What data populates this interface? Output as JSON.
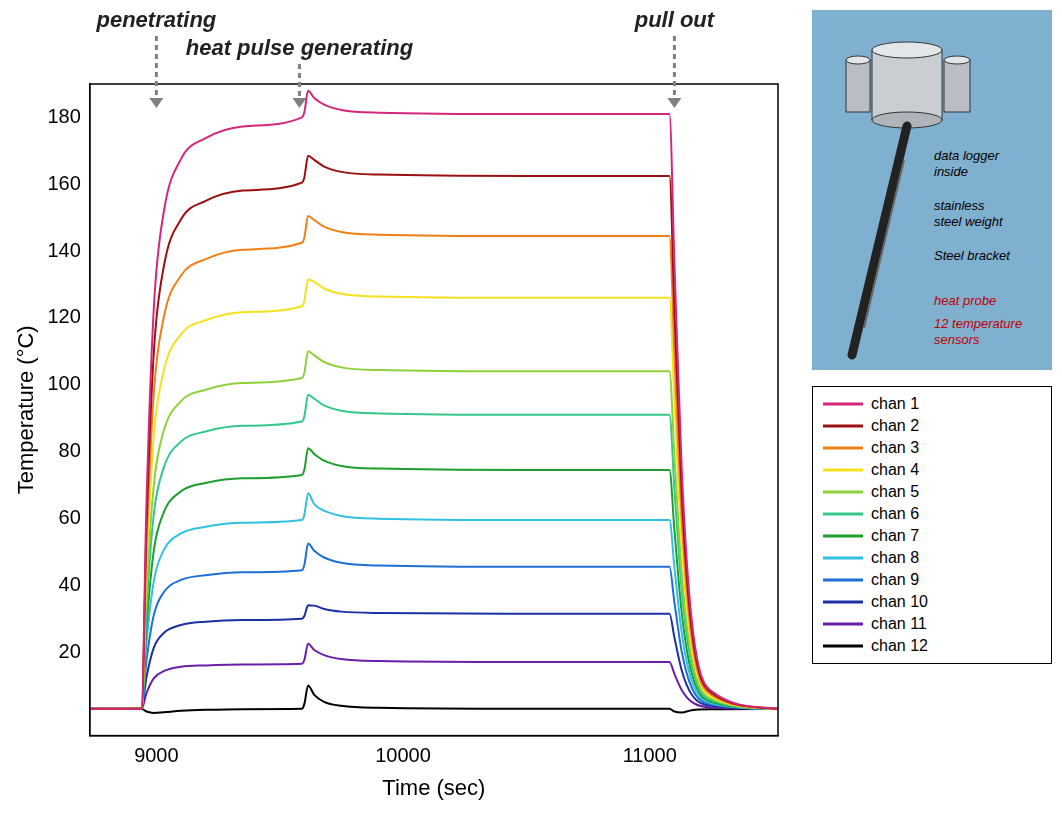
{
  "chart_data": {
    "type": "line",
    "x_label": "Time (sec)",
    "y_label": "Temperature (°C)",
    "annotations": [
      {
        "text": "penetrating",
        "x": 9000
      },
      {
        "text": "heat pulse generating",
        "x": 9580
      },
      {
        "text": "pull out",
        "x": 11100
      }
    ],
    "inset_texts": [
      "data logger inside",
      "stainless steel weight",
      "Steel bracket",
      "heat probe",
      "12 temperature sensors"
    ],
    "x": [
      8730,
      8940,
      8960,
      8990,
      9030,
      9100,
      9200,
      9350,
      9590,
      9600,
      9615,
      9640,
      9680,
      9750,
      9900,
      10500,
      11080,
      11100,
      11130,
      11170,
      11250,
      11520
    ],
    "series": [
      {
        "name": "chan 1",
        "color": "#d6267c",
        "values": [
          3,
          3,
          65,
          123.4,
          151.7,
          167.6,
          173.8,
          177.3,
          180,
          181.6,
          188,
          185.8,
          183.8,
          182.2,
          181.4,
          181,
          181,
          136.5,
          74.2,
          29.7,
          8.3,
          3
        ]
      },
      {
        "name": "chan 2",
        "color": "#9b1010",
        "values": [
          3,
          3,
          58.1,
          110.1,
          135.3,
          149.5,
          155,
          158.1,
          160.5,
          162.1,
          168.5,
          167.3,
          165.3,
          163.7,
          162.9,
          162.5,
          162.5,
          122.6,
          66.8,
          26.9,
          7.8,
          3
        ]
      },
      {
        "name": "chan 3",
        "color": "#f07f17",
        "values": [
          3,
          3,
          51.8,
          97.9,
          120.2,
          132.7,
          137.6,
          140.4,
          142.5,
          144.1,
          150.5,
          149.3,
          147.3,
          145.7,
          144.9,
          144.5,
          144.5,
          109.1,
          59.6,
          24.2,
          7.2,
          3
        ]
      },
      {
        "name": "chan 4",
        "color": "#f5e11e",
        "values": [
          3,
          3,
          45.2,
          84.9,
          104.2,
          115.1,
          119.3,
          121.7,
          123.5,
          125.1,
          131.5,
          130.8,
          128.8,
          127.2,
          126.4,
          126,
          126,
          95.3,
          52.2,
          21.5,
          6.7,
          3
        ]
      },
      {
        "name": "chan 5",
        "color": "#8fd13b",
        "values": [
          3,
          3,
          37.7,
          70.3,
          86.2,
          95.1,
          98.5,
          100.5,
          102,
          103.6,
          110,
          108.8,
          106.8,
          105.2,
          104.4,
          104,
          104,
          78.8,
          43.4,
          18.2,
          6,
          3
        ]
      },
      {
        "name": "chan 6",
        "color": "#33c88a",
        "values": [
          3,
          3,
          33.1,
          61.5,
          75.2,
          83,
          86,
          87.7,
          89,
          90.6,
          97,
          95.8,
          93.8,
          92.2,
          91.4,
          91,
          91,
          69,
          38.2,
          16.2,
          5.6,
          3
        ]
      },
      {
        "name": "chan 7",
        "color": "#1f9e2e",
        "values": [
          3,
          3,
          27.5,
          50.6,
          61.8,
          68.1,
          70.6,
          72,
          73,
          74.6,
          81,
          79.3,
          77.3,
          75.7,
          74.9,
          74.5,
          74.5,
          56.6,
          31.6,
          13.7,
          5.1,
          3
        ]
      },
      {
        "name": "chan 8",
        "color": "#30c0e0",
        "values": [
          3,
          3,
          22.8,
          41.4,
          50.5,
          55.5,
          57.5,
          58.7,
          59.5,
          61.1,
          67.5,
          64.3,
          62.3,
          60.7,
          59.9,
          59.5,
          59.5,
          45.4,
          25.6,
          11.5,
          4.7,
          3
        ]
      },
      {
        "name": "chan 9",
        "color": "#1d6fd6",
        "values": [
          3,
          3,
          17.5,
          31.2,
          37.9,
          41.6,
          43,
          43.9,
          44.5,
          46.1,
          52.5,
          50.3,
          48.3,
          46.7,
          45.9,
          45.5,
          45.5,
          34.9,
          20,
          9.4,
          4.3,
          3
        ]
      },
      {
        "name": "chan 10",
        "color": "#1c2fa3",
        "values": [
          3,
          3,
          12.5,
          21.4,
          25.7,
          28.1,
          29.1,
          29.6,
          30,
          30.8,
          34,
          33.9,
          32.9,
          32.1,
          31.7,
          31.5,
          31.5,
          24.4,
          14.4,
          7.3,
          3.9,
          3
        ]
      },
      {
        "name": "chan 11",
        "color": "#6a1fa8",
        "values": [
          3,
          3,
          7.7,
          12.2,
          14.3,
          15.6,
          16,
          16.3,
          16.5,
          17.7,
          22.5,
          20.6,
          19.1,
          17.9,
          17.3,
          17,
          17,
          13.5,
          8.6,
          5.1,
          3.4,
          3
        ]
      },
      {
        "name": "chan 12",
        "color": "#000000",
        "values": [
          3,
          3,
          2.2,
          1.8,
          2,
          2.4,
          2.7,
          2.9,
          3,
          4.5,
          10,
          7.2,
          5.1,
          3.9,
          3.3,
          3,
          3,
          2.2,
          1.9,
          2.6,
          2.9,
          3
        ]
      }
    ],
    "xlim": [
      8730,
      11520
    ],
    "xticks": [
      9000,
      10000,
      11000
    ],
    "ylim": [
      -5,
      190
    ],
    "yticks": [
      20,
      40,
      60,
      80,
      100,
      120,
      140,
      160,
      180
    ],
    "grid": false,
    "legend": "right"
  }
}
